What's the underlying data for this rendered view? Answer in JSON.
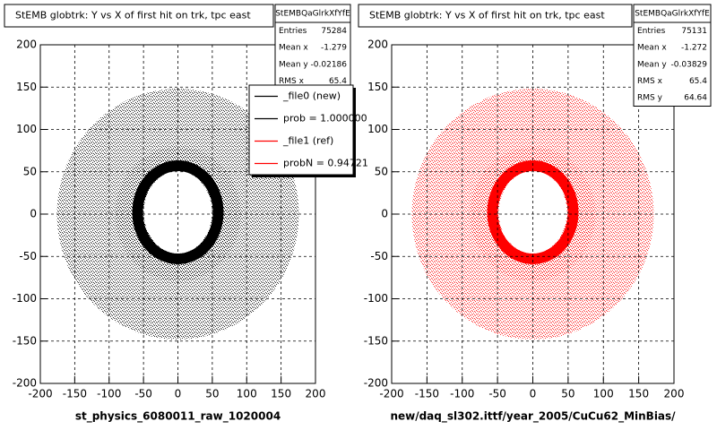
{
  "chart_data": [
    {
      "type": "scatter",
      "title": "StEMB globtrk: Y vs X of first hit on trk, tpc east",
      "xlabel": "st_physics_6080011_raw_1020004",
      "color": "#000000",
      "xlim": [
        -200,
        200
      ],
      "ylim": [
        -200,
        200
      ],
      "xticks": [
        -200,
        -150,
        -100,
        -50,
        0,
        50,
        100,
        150,
        200
      ],
      "yticks": [
        -200,
        -150,
        -100,
        -50,
        0,
        50,
        100,
        150,
        200
      ],
      "grid": true,
      "stats": {
        "title": "StEMBQaGlrkXfYfE",
        "labels": [
          "Entries",
          "Mean x",
          "Mean y",
          "RMS x"
        ],
        "values": [
          75284,
          -1.279,
          -0.02186,
          65.4
        ]
      },
      "legend": {
        "entries": [
          "_file0 (new)",
          "prob = 1.000000",
          "_file1 (ref)",
          "probN = 0.94721"
        ],
        "colors": [
          "#000000",
          "#000000",
          "#ff0000",
          "#ff0000"
        ]
      }
    },
    {
      "type": "scatter",
      "title": "StEMB globtrk: Y vs X of first hit on trk, tpc east",
      "xlabel": "new/daq_sl302.ittf/year_2005/CuCu62_MinBias/",
      "color": "#ff0000",
      "xlim": [
        -200,
        200
      ],
      "ylim": [
        -200,
        200
      ],
      "xticks": [
        -200,
        -150,
        -100,
        -50,
        0,
        50,
        100,
        150,
        200
      ],
      "yticks": [
        -200,
        -150,
        -100,
        -50,
        0,
        50,
        100,
        150,
        200
      ],
      "grid": true,
      "stats": {
        "title": "StEMBQaGlrkXfYfE",
        "labels": [
          "Entries",
          "Mean x",
          "Mean y",
          "RMS x",
          "RMS y"
        ],
        "values": [
          75131,
          -1.272,
          -0.03829,
          65.4,
          64.64
        ]
      }
    }
  ]
}
